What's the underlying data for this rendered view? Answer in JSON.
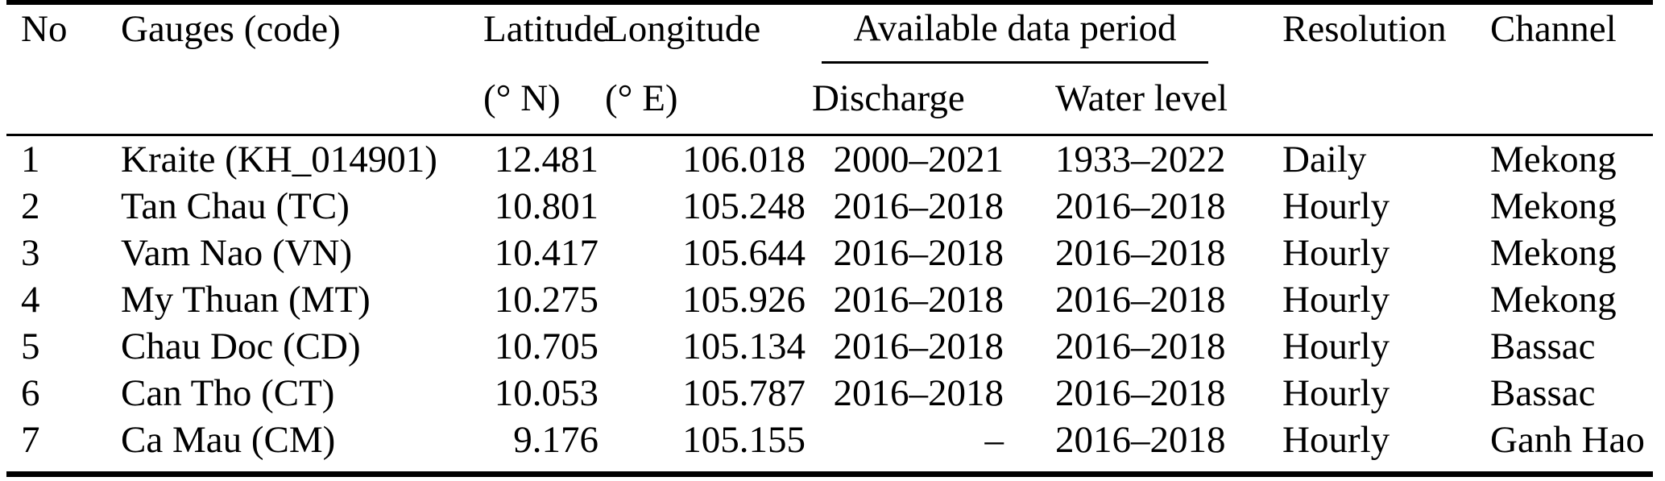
{
  "table": {
    "header": {
      "no": "No",
      "gauges": "Gauges (code)",
      "latitude": "Latitude",
      "latitude_unit": "(° N)",
      "longitude": "Longitude",
      "longitude_unit": "(° E)",
      "data_period_group": "Available data period",
      "discharge": "Discharge",
      "water_level": "Water level",
      "resolution": "Resolution",
      "channel": "Channel"
    },
    "rows": [
      {
        "no": "1",
        "gauge": "Kraite (KH_014901)",
        "latitude": "12.481",
        "longitude": "106.018",
        "discharge": "2000–2021",
        "water_level": "1933–2022",
        "resolution": "Daily",
        "channel": "Mekong"
      },
      {
        "no": "2",
        "gauge": "Tan Chau (TC)",
        "latitude": "10.801",
        "longitude": "105.248",
        "discharge": "2016–2018",
        "water_level": "2016–2018",
        "resolution": "Hourly",
        "channel": "Mekong"
      },
      {
        "no": "3",
        "gauge": "Vam Nao (VN)",
        "latitude": "10.417",
        "longitude": "105.644",
        "discharge": "2016–2018",
        "water_level": "2016–2018",
        "resolution": "Hourly",
        "channel": "Mekong"
      },
      {
        "no": "4",
        "gauge": "My Thuan (MT)",
        "latitude": "10.275",
        "longitude": "105.926",
        "discharge": "2016–2018",
        "water_level": "2016–2018",
        "resolution": "Hourly",
        "channel": "Mekong"
      },
      {
        "no": "5",
        "gauge": "Chau Doc (CD)",
        "latitude": "10.705",
        "longitude": "105.134",
        "discharge": "2016–2018",
        "water_level": "2016–2018",
        "resolution": "Hourly",
        "channel": "Bassac"
      },
      {
        "no": "6",
        "gauge": "Can Tho (CT)",
        "latitude": "10.053",
        "longitude": "105.787",
        "discharge": "2016–2018",
        "water_level": "2016–2018",
        "resolution": "Hourly",
        "channel": "Bassac"
      },
      {
        "no": "7",
        "gauge": "Ca Mau (CM)",
        "latitude": "9.176",
        "longitude": "105.155",
        "discharge": "–",
        "water_level": "2016–2018",
        "resolution": "Hourly",
        "channel": "Ganh Hao"
      }
    ],
    "colors": {
      "text": "#000000",
      "rule": "#000000",
      "background": "#ffffff"
    }
  }
}
